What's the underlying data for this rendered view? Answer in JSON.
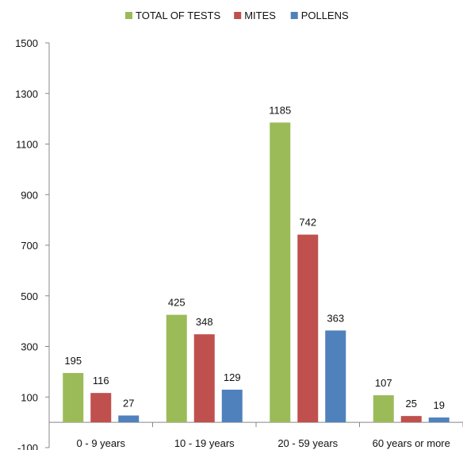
{
  "chart_data": {
    "type": "bar",
    "title": "",
    "xlabel": "",
    "ylabel": "",
    "categories": [
      "0 - 9 years",
      "10 - 19 years",
      "20 - 59 years",
      "60 years or more"
    ],
    "series": [
      {
        "name": "TOTAL OF TESTS",
        "color": "#9BBB59",
        "values": [
          195,
          425,
          1185,
          107
        ]
      },
      {
        "name": "MITES",
        "color": "#C0504D",
        "values": [
          116,
          348,
          742,
          25
        ]
      },
      {
        "name": "POLLENS",
        "color": "#4F81BD",
        "values": [
          27,
          129,
          363,
          19
        ]
      }
    ],
    "ylim": [
      -100,
      1500
    ],
    "yticks": [
      "-100",
      "100",
      "300",
      "500",
      "700",
      "900",
      "1100",
      "1300",
      "1500"
    ],
    "legend": "top-center",
    "grid": false,
    "data_labels": true
  }
}
